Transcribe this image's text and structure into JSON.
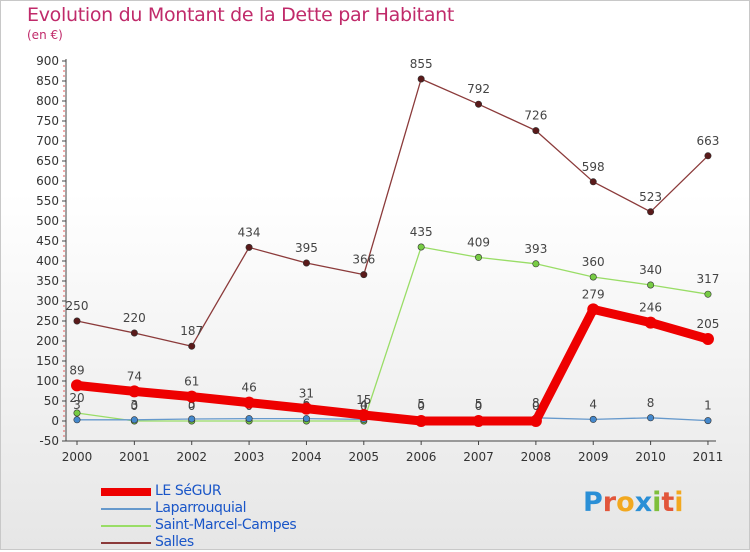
{
  "chart_data": {
    "type": "line",
    "title": "Evolution du Montant de la Dette par Habitant",
    "subtitle": "(en €)",
    "xlabel": "",
    "ylabel": "",
    "categories": [
      "2000",
      "2001",
      "2002",
      "2003",
      "2004",
      "2005",
      "2006",
      "2007",
      "2008",
      "2009",
      "2010",
      "2011"
    ],
    "ylim": [
      -50,
      900
    ],
    "yticks": [
      -50,
      0,
      50,
      100,
      150,
      200,
      250,
      300,
      350,
      400,
      450,
      500,
      550,
      600,
      650,
      700,
      750,
      800,
      850,
      900
    ],
    "series": [
      {
        "name": "Salles",
        "color": "#8b3a3a",
        "marker": "#5a1a1a",
        "width": 1.3,
        "values": [
          250,
          220,
          187,
          434,
          395,
          366,
          855,
          792,
          726,
          598,
          523,
          663
        ],
        "labels": [
          "250",
          "220",
          "187",
          "434",
          "395",
          "366",
          "855",
          "792",
          "726",
          "598",
          "523",
          "663"
        ]
      },
      {
        "name": "Saint-Marcel-Campes",
        "color": "#99dd66",
        "marker": "#77cc44",
        "width": 1.3,
        "values": [
          20,
          0,
          0,
          0,
          0,
          0,
          435,
          409,
          393,
          360,
          340,
          317
        ],
        "labels": [
          "20",
          "0",
          "0",
          "0",
          "0",
          "0",
          "435",
          "409",
          "393",
          "360",
          "340",
          "317"
        ]
      },
      {
        "name": "Laparrouquial",
        "color": "#6699cc",
        "marker": "#4488cc",
        "width": 1.3,
        "values": [
          3,
          3,
          5,
          6,
          6,
          4,
          5,
          5,
          8,
          4,
          8,
          1
        ],
        "labels": [
          "3",
          "3",
          "5",
          "6",
          "6",
          "4",
          "5",
          "5",
          "8",
          "4",
          "8",
          "1"
        ]
      },
      {
        "name": "LE SéGUR",
        "color": "#ee0000",
        "marker": "#ee0000",
        "width": 9,
        "values": [
          89,
          74,
          61,
          46,
          31,
          15,
          0,
          0,
          0,
          279,
          246,
          205
        ],
        "labels": [
          "89",
          "74",
          "61",
          "46",
          "31",
          "15",
          "0",
          "0",
          "0",
          "279",
          "246",
          "205"
        ]
      }
    ],
    "legend": [
      "LE SéGUR",
      "Laparrouquial",
      "Saint-Marcel-Campes",
      "Salles"
    ],
    "legend_colors": [
      "#ee0000",
      "#6699cc",
      "#99dd66",
      "#8b3a3a"
    ],
    "legend_placement": "bottom-left",
    "grid": false
  },
  "logo": {
    "letters": [
      "P",
      "r",
      "o",
      "x",
      "i",
      "t",
      "i"
    ],
    "colors": [
      "#2a8fd6",
      "#e2563b",
      "#f2a81f",
      "#2a8fd6",
      "#7fbf3b",
      "#e2563b",
      "#f2a81f"
    ]
  }
}
